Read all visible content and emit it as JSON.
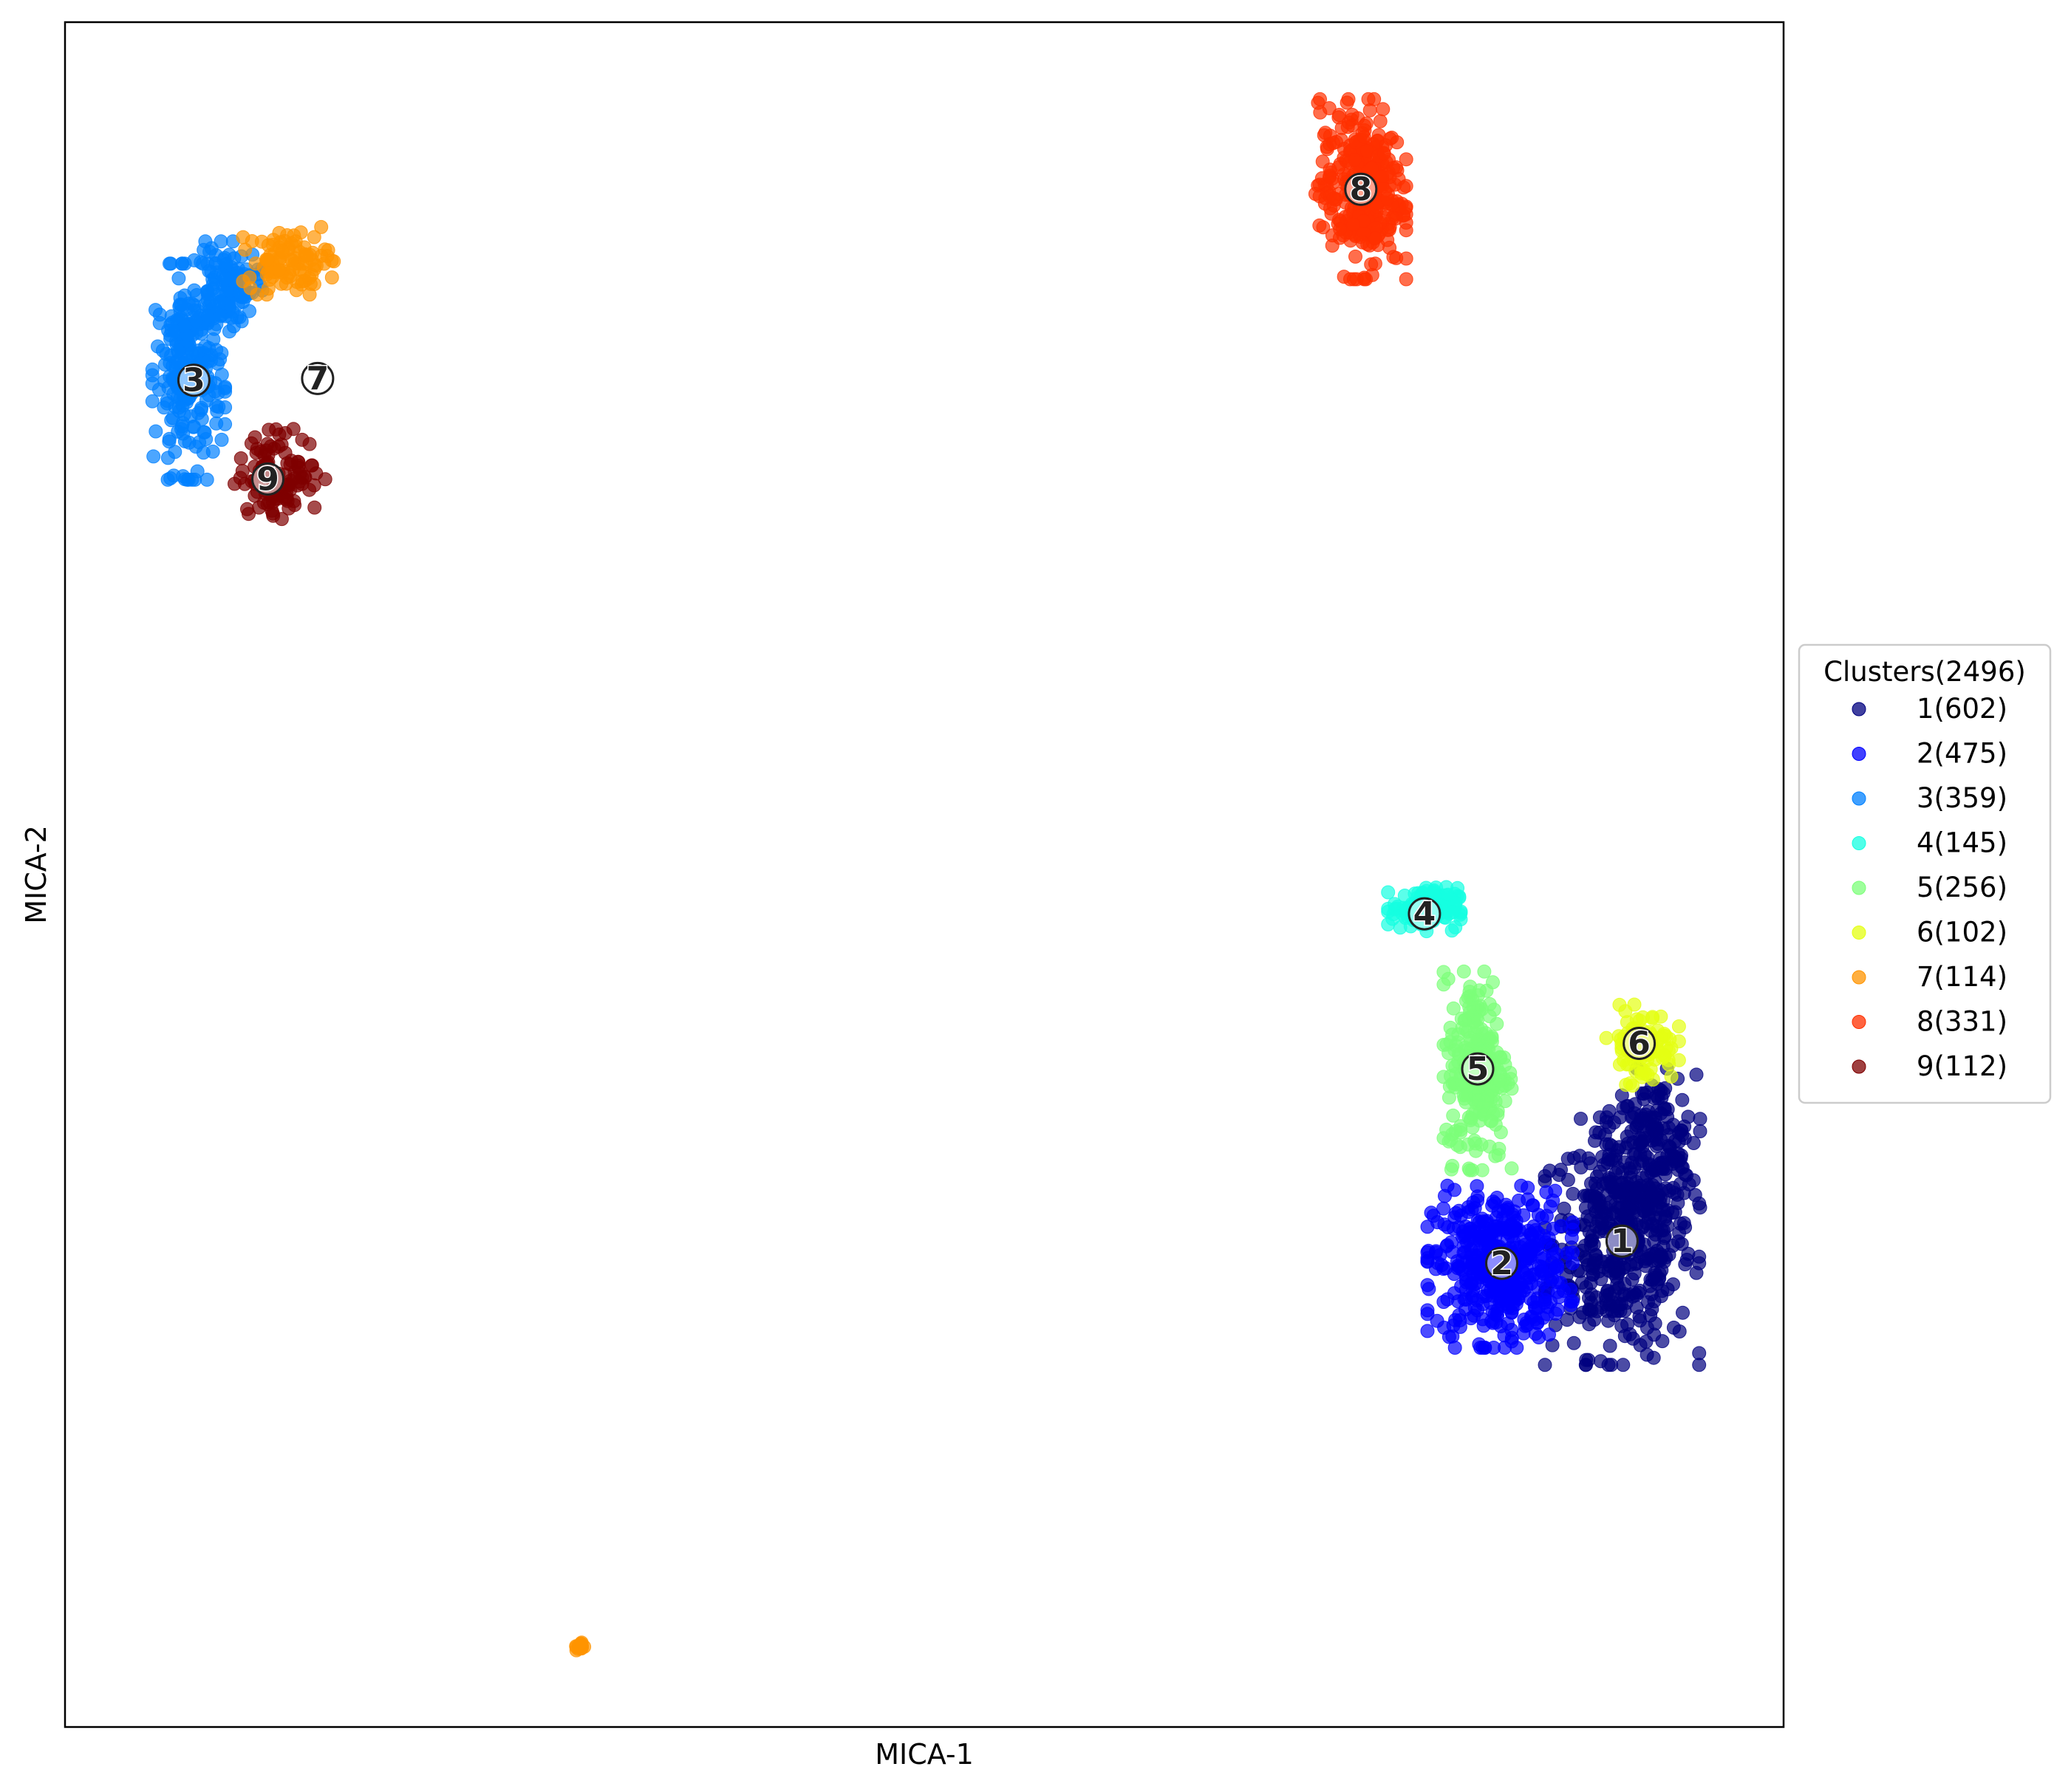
{
  "chart_data": {
    "type": "scatter",
    "xlabel": "MICA-1",
    "ylabel": "MICA-2",
    "xlim": [
      0,
      100
    ],
    "ylim": [
      0,
      100
    ],
    "ticks": false,
    "grid": false,
    "legend": {
      "title": "Clusters(2496)",
      "placement": "right-outside"
    },
    "series": [
      {
        "name": "1(602)",
        "label": "1",
        "count": 602,
        "color": "#00007f",
        "center": [
          90.6,
          28.5
        ],
        "spread": [
          3.5,
          6.2
        ],
        "blobs": [
          [
            90.6,
            28.5,
            3.4,
            5.5,
            0.75
          ],
          [
            92.5,
            34,
            2.0,
            3.5,
            0.25
          ]
        ]
      },
      {
        "name": "2(475)",
        "label": "2",
        "count": 475,
        "color": "#0000ff",
        "center": [
          83.6,
          27.2
        ],
        "spread": [
          3.4,
          4.0
        ],
        "blobs": [
          [
            83.5,
            27.0,
            3.2,
            3.6,
            1.0
          ]
        ]
      },
      {
        "name": "3(359)",
        "label": "3",
        "count": 359,
        "color": "#0080ff",
        "center": [
          7.5,
          79.0
        ],
        "spread": [
          2.5,
          5.0
        ],
        "blobs": [
          [
            7.2,
            79.5,
            1.6,
            4.8,
            0.7
          ],
          [
            9.5,
            84.5,
            1.5,
            2.0,
            0.3
          ]
        ]
      },
      {
        "name": "4(145)",
        "label": "4",
        "count": 145,
        "color": "#15ffe1",
        "center": [
          79.1,
          47.7
        ],
        "spread": [
          1.8,
          1.2
        ],
        "blobs": [
          [
            79.1,
            48.0,
            1.6,
            1.0,
            1.0
          ]
        ]
      },
      {
        "name": "5(256)",
        "label": "5",
        "count": 256,
        "color": "#7cff79",
        "center": [
          82.2,
          38.6
        ],
        "spread": [
          1.8,
          5.0
        ],
        "blobs": [
          [
            82.2,
            38.6,
            1.5,
            4.5,
            1.0
          ]
        ]
      },
      {
        "name": "6(102)",
        "label": "6",
        "count": 102,
        "color": "#e4ff13",
        "center": [
          91.6,
          40.1
        ],
        "spread": [
          2.0,
          2.0
        ],
        "blobs": [
          [
            91.8,
            40.0,
            1.6,
            1.8,
            1.0
          ]
        ]
      },
      {
        "name": "7(114)",
        "label": "7",
        "count": 114,
        "color": "#ff9400",
        "center": [
          14.7,
          79.1
        ],
        "spread": [
          2.5,
          3.0
        ],
        "blobs": [
          [
            13.0,
            86.0,
            2.0,
            1.5,
            0.85
          ],
          [
            30.0,
            4.7,
            0.2,
            0.2,
            0.15
          ]
        ]
      },
      {
        "name": "8(331)",
        "label": "8",
        "count": 331,
        "color": "#ff3000",
        "center": [
          75.4,
          90.2
        ],
        "spread": [
          2.5,
          4.5
        ],
        "blobs": [
          [
            75.4,
            90.2,
            2.0,
            4.0,
            1.0
          ]
        ]
      },
      {
        "name": "9(112)",
        "label": "9",
        "count": 112,
        "color": "#7f0000",
        "center": [
          11.8,
          73.2
        ],
        "spread": [
          2.5,
          2.5
        ],
        "blobs": [
          [
            12.5,
            73.5,
            2.0,
            2.0,
            1.0
          ]
        ]
      }
    ]
  }
}
